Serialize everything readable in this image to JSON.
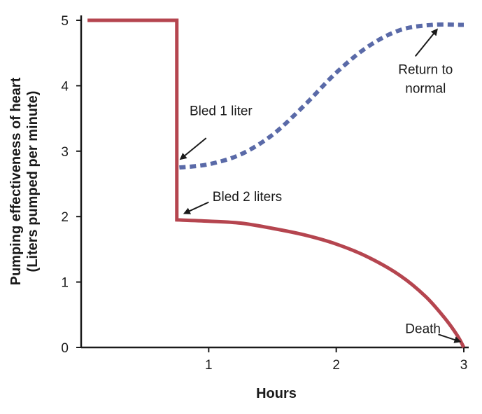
{
  "chart_data": {
    "type": "line",
    "xlabel": "Hours",
    "ylabel": [
      "Pumping effectiveness of heart",
      "(Liters pumped per minute)"
    ],
    "xlim": [
      0,
      3
    ],
    "ylim": [
      0,
      5
    ],
    "x_ticks": [
      1,
      2,
      3
    ],
    "y_ticks": [
      0,
      1,
      2,
      3,
      4,
      5
    ],
    "grid": false,
    "colors": {
      "bled2": "#b5454f",
      "bled1": "#5a6aa8",
      "axis": "#1a1a1a"
    },
    "series": [
      {
        "key": "bled2",
        "style": "solid",
        "points": [
          [
            0.05,
            5
          ],
          [
            0.75,
            5
          ],
          [
            0.75,
            1.95
          ],
          [
            1.0,
            1.93
          ],
          [
            1.25,
            1.9
          ],
          [
            1.5,
            1.82
          ],
          [
            1.75,
            1.72
          ],
          [
            2.0,
            1.58
          ],
          [
            2.25,
            1.38
          ],
          [
            2.5,
            1.1
          ],
          [
            2.7,
            0.78
          ],
          [
            2.85,
            0.45
          ],
          [
            2.95,
            0.18
          ],
          [
            3.0,
            0.0
          ]
        ]
      },
      {
        "key": "bled1",
        "style": "dashed",
        "points": [
          [
            0.77,
            2.75
          ],
          [
            1.0,
            2.8
          ],
          [
            1.25,
            2.95
          ],
          [
            1.5,
            3.25
          ],
          [
            1.75,
            3.7
          ],
          [
            2.0,
            4.2
          ],
          [
            2.25,
            4.6
          ],
          [
            2.5,
            4.85
          ],
          [
            2.75,
            4.93
          ],
          [
            3.0,
            4.93
          ]
        ]
      }
    ],
    "annotations": [
      {
        "key": "bled1",
        "lines": [
          "Bled 1 liter"
        ],
        "text_at": [
          0.85,
          3.55
        ],
        "arrow_from": [
          0.98,
          3.2
        ],
        "arrow_to": [
          0.78,
          2.88
        ]
      },
      {
        "key": "bled2",
        "lines": [
          "Bled 2 liters"
        ],
        "text_at": [
          1.03,
          2.24
        ],
        "arrow_from": [
          1.0,
          2.22
        ],
        "arrow_to": [
          0.81,
          2.05
        ]
      },
      {
        "key": "normal",
        "lines": [
          "Return to",
          "normal"
        ],
        "text_at": [
          2.7,
          4.18
        ],
        "arrow_from": [
          2.62,
          4.45
        ],
        "arrow_to": [
          2.79,
          4.86
        ]
      },
      {
        "key": "death",
        "lines": [
          "Death"
        ],
        "text_at": [
          2.68,
          0.22
        ],
        "arrow_from": [
          2.8,
          0.2
        ],
        "arrow_to": [
          2.97,
          0.09
        ]
      }
    ]
  }
}
